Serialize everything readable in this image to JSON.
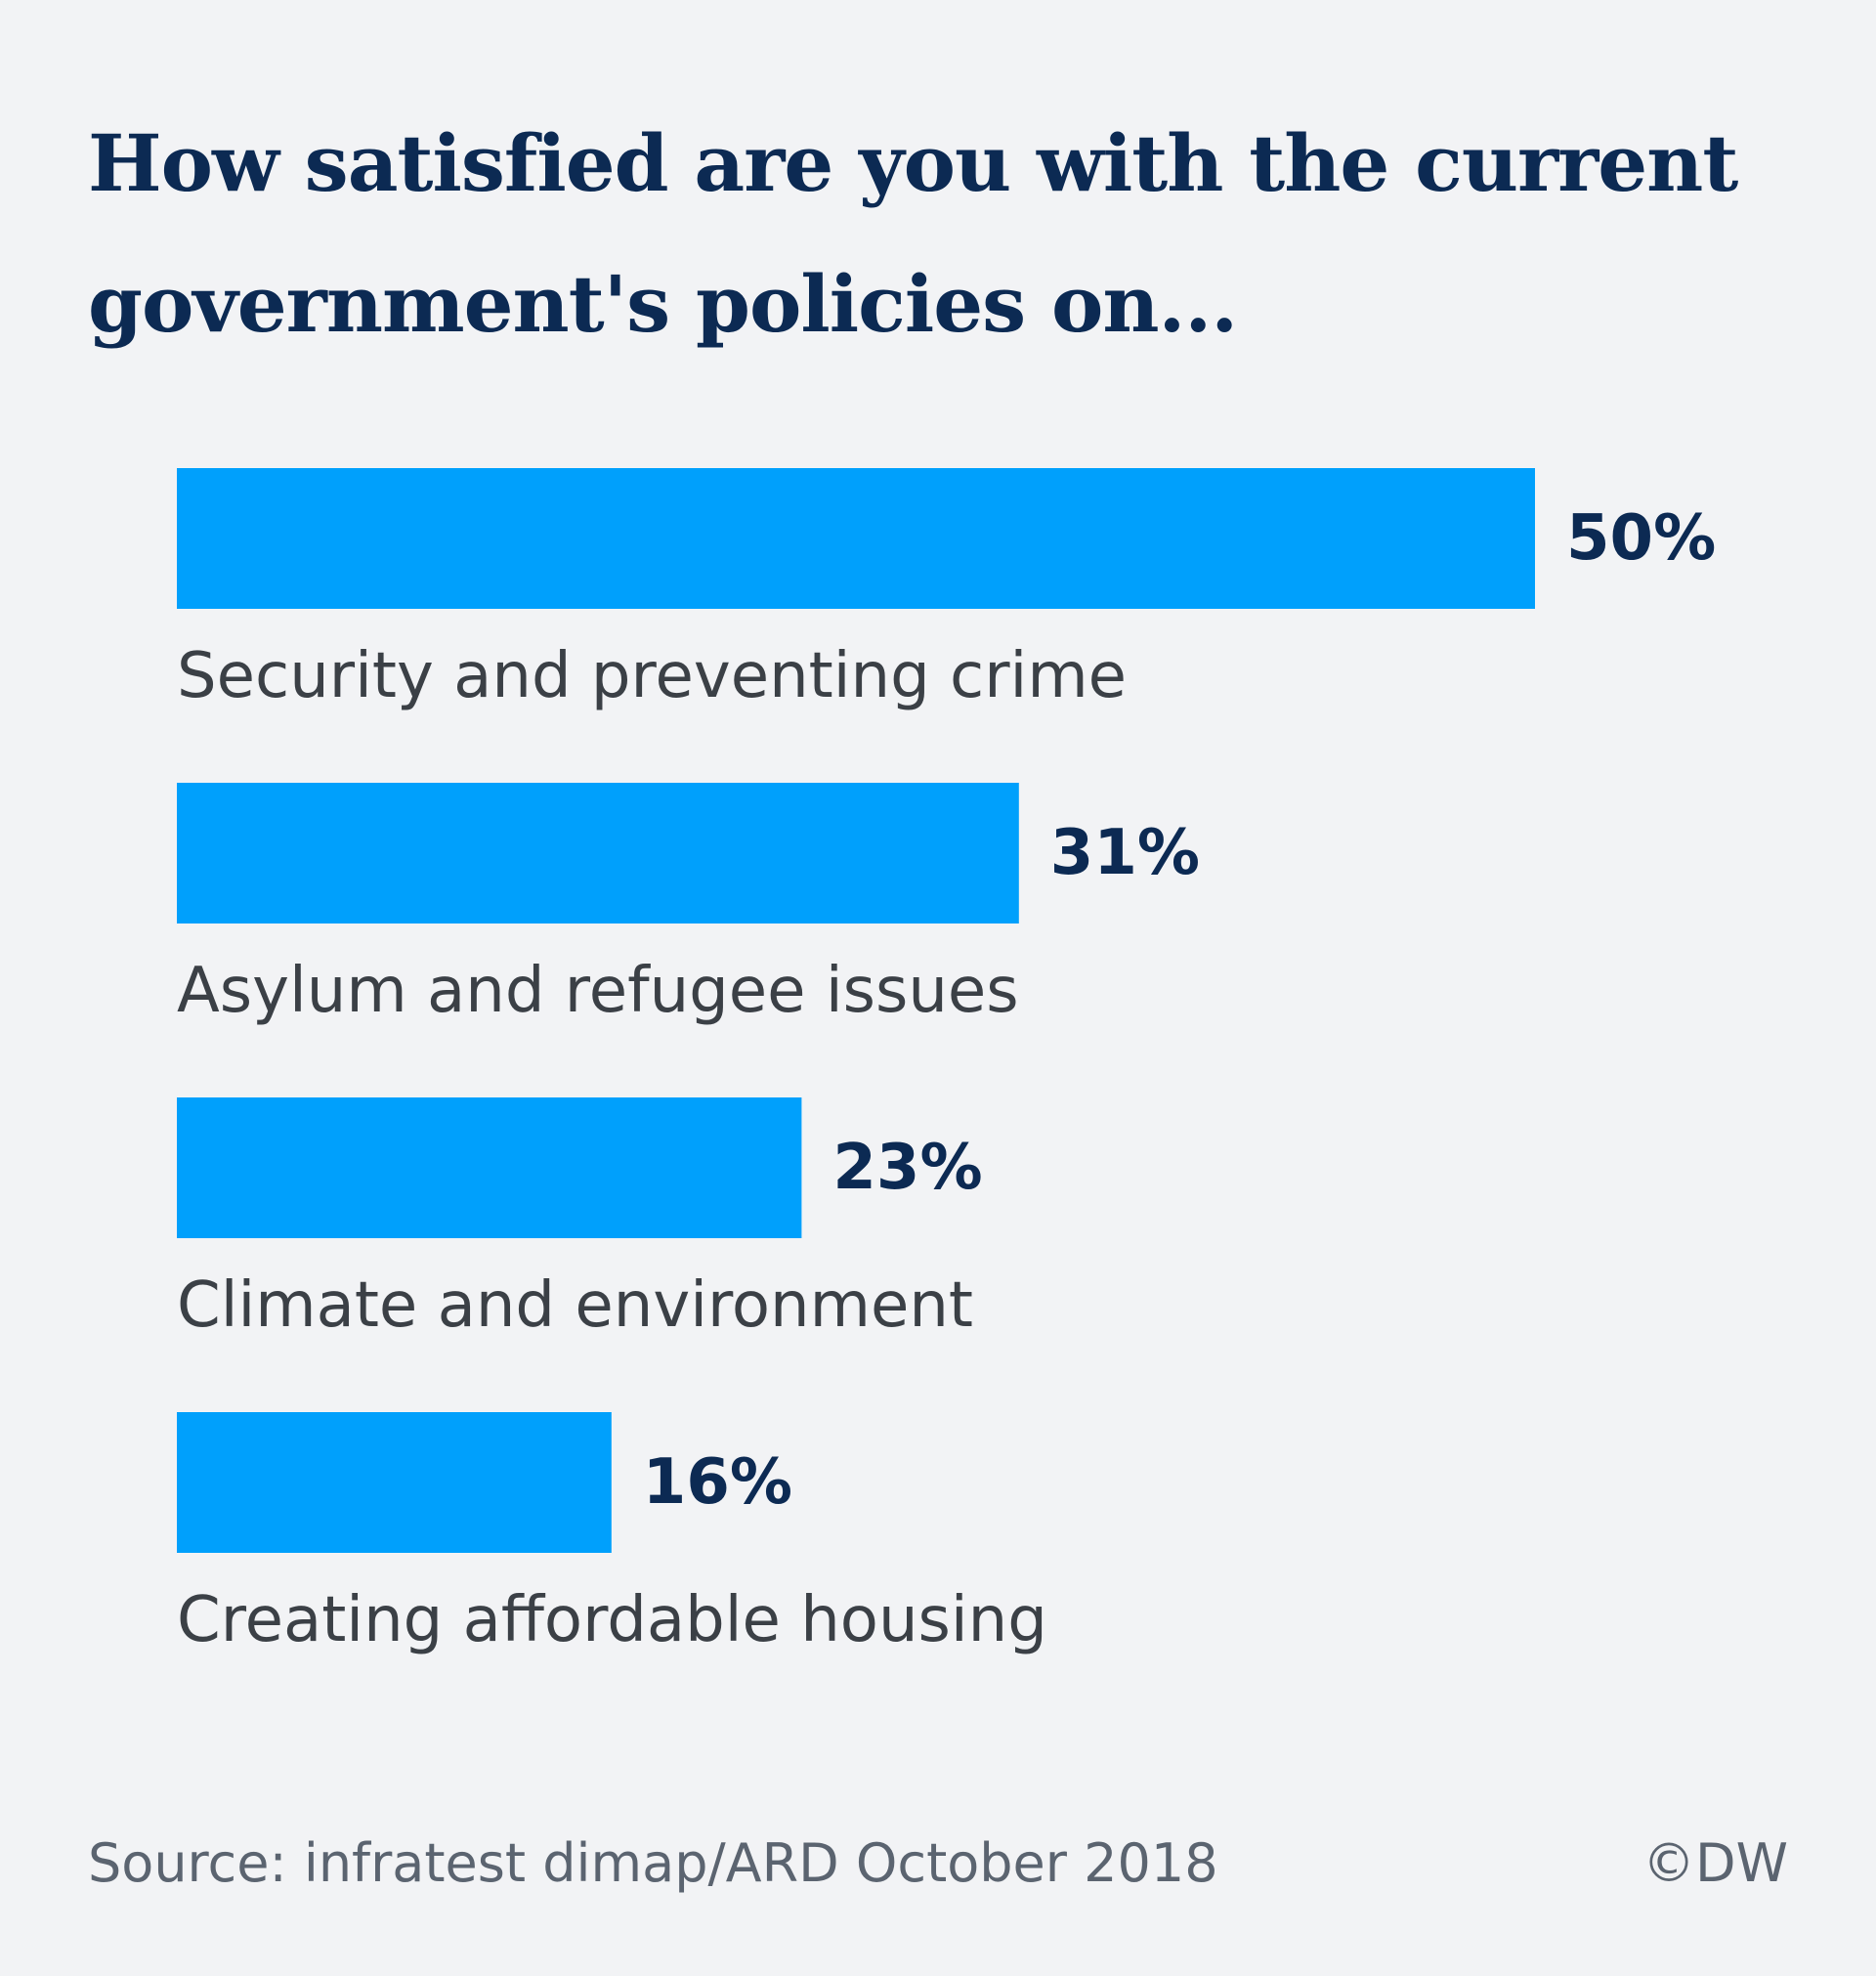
{
  "title": "How satisfied are you with the current government's policies on...",
  "source": "Source: infratest dimap/ARD October 2018",
  "credit": "©DW",
  "colors": {
    "bar": "#00a0fc",
    "value_text": "#0c2a53",
    "label_text": "#3b4046",
    "background": "#f2f3f5"
  },
  "chart_data": {
    "type": "bar",
    "orientation": "horizontal",
    "title": "How satisfied are you with the current government's policies on...",
    "categories": [
      "Security and preventing crime",
      "Asylum and refugee issues",
      "Climate and environment",
      "Creating affordable housing"
    ],
    "values": [
      50,
      31,
      23,
      16
    ],
    "value_labels": [
      "50%",
      "31%",
      "23%",
      "16%"
    ],
    "unit": "%",
    "grid": false,
    "legend": "none"
  }
}
